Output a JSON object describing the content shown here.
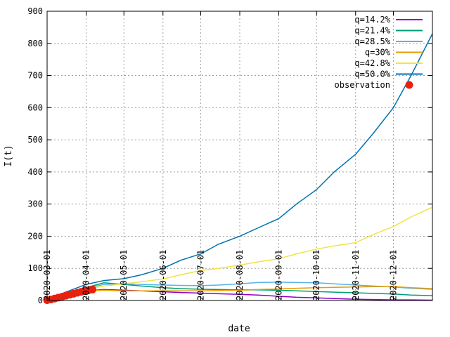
{
  "chart_data": {
    "type": "line",
    "xlabel": "date",
    "ylabel": "I(t)",
    "xlim": [
      "2020-03-01",
      "2021-01-01"
    ],
    "ylim": [
      0,
      900
    ],
    "yticks": [
      0,
      100,
      200,
      300,
      400,
      500,
      600,
      700,
      800,
      900
    ],
    "xticks": [
      "2020-03-01",
      "2020-04-01",
      "2020-05-01",
      "2020-06-01",
      "2020-07-01",
      "2020-08-01",
      "2020-09-01",
      "2020-10-01",
      "2020-11-01",
      "2020-12-01"
    ],
    "grid": true,
    "legend_position": "top-right",
    "series": [
      {
        "name": "q=14.2%",
        "color": "#8b00c8",
        "x": [
          "2020-03-01",
          "2020-03-15",
          "2020-04-01",
          "2020-04-15",
          "2020-05-01",
          "2020-05-15",
          "2020-06-01",
          "2020-06-15",
          "2020-07-01",
          "2020-07-15",
          "2020-08-01",
          "2020-08-15",
          "2020-09-01",
          "2020-09-15",
          "2020-10-01",
          "2020-10-15",
          "2020-11-01",
          "2020-11-15",
          "2020-12-01",
          "2020-12-15",
          "2021-01-01"
        ],
        "y": [
          2,
          15,
          30,
          34,
          32,
          30,
          27,
          25,
          23,
          21,
          19,
          17,
          13,
          10,
          8,
          6,
          4,
          3,
          2,
          2,
          1
        ]
      },
      {
        "name": "q=21.4%",
        "color": "#009e73",
        "x": [
          "2020-03-01",
          "2020-03-15",
          "2020-04-01",
          "2020-04-15",
          "2020-05-01",
          "2020-05-15",
          "2020-06-01",
          "2020-06-15",
          "2020-07-01",
          "2020-07-15",
          "2020-08-01",
          "2020-08-15",
          "2020-09-01",
          "2020-09-15",
          "2020-10-01",
          "2020-10-15",
          "2020-11-01",
          "2020-11-15",
          "2020-12-01",
          "2020-12-15",
          "2021-01-01"
        ],
        "y": [
          2,
          20,
          40,
          55,
          50,
          45,
          40,
          37,
          35,
          34,
          33,
          33,
          32,
          30,
          28,
          26,
          24,
          22,
          20,
          17,
          15
        ]
      },
      {
        "name": "q=28.5%",
        "color": "#56b4e9",
        "x": [
          "2020-03-01",
          "2020-03-15",
          "2020-04-01",
          "2020-04-15",
          "2020-05-01",
          "2020-05-15",
          "2020-06-01",
          "2020-06-15",
          "2020-07-01",
          "2020-07-15",
          "2020-08-01",
          "2020-08-15",
          "2020-09-01",
          "2020-09-15",
          "2020-10-01",
          "2020-10-15",
          "2020-11-01",
          "2020-11-15",
          "2020-12-01",
          "2020-12-15",
          "2021-01-01"
        ],
        "y": [
          2,
          20,
          38,
          50,
          52,
          50,
          48,
          47,
          46,
          48,
          52,
          56,
          57,
          56,
          55,
          52,
          48,
          45,
          42,
          38,
          35
        ]
      },
      {
        "name": "q=30%",
        "color": "#e69f00",
        "x": [
          "2020-03-01",
          "2020-03-15",
          "2020-04-01",
          "2020-04-15",
          "2020-05-01",
          "2020-05-15",
          "2020-06-01",
          "2020-06-15",
          "2020-07-01",
          "2020-07-15",
          "2020-08-01",
          "2020-08-15",
          "2020-09-01",
          "2020-09-15",
          "2020-10-01",
          "2020-10-15",
          "2020-11-01",
          "2020-11-15",
          "2020-12-01",
          "2020-12-15",
          "2021-01-01"
        ],
        "y": [
          2,
          18,
          30,
          32,
          30,
          30,
          30,
          30,
          30,
          31,
          32,
          34,
          36,
          38,
          40,
          41,
          42,
          43,
          43,
          40,
          37
        ]
      },
      {
        "name": "q=42.8%",
        "color": "#f0e442",
        "x": [
          "2020-03-01",
          "2020-03-15",
          "2020-04-01",
          "2020-04-15",
          "2020-05-01",
          "2020-05-15",
          "2020-06-01",
          "2020-06-15",
          "2020-07-01",
          "2020-07-15",
          "2020-08-01",
          "2020-08-15",
          "2020-09-01",
          "2020-09-15",
          "2020-10-01",
          "2020-10-15",
          "2020-11-01",
          "2020-11-15",
          "2020-12-01",
          "2020-12-15",
          "2021-01-01"
        ],
        "y": [
          2,
          18,
          35,
          45,
          52,
          58,
          67,
          80,
          93,
          100,
          110,
          120,
          130,
          145,
          160,
          170,
          180,
          205,
          230,
          260,
          290
        ]
      },
      {
        "name": "q=50.0%",
        "color": "#0072b2",
        "x": [
          "2020-03-01",
          "2020-03-15",
          "2020-04-01",
          "2020-04-15",
          "2020-05-01",
          "2020-05-15",
          "2020-06-01",
          "2020-06-15",
          "2020-07-01",
          "2020-07-15",
          "2020-08-01",
          "2020-08-15",
          "2020-09-01",
          "2020-09-15",
          "2020-10-01",
          "2020-10-15",
          "2020-11-01",
          "2020-11-15",
          "2020-12-01",
          "2020-12-15",
          "2021-01-01"
        ],
        "y": [
          2,
          25,
          50,
          62,
          68,
          80,
          100,
          125,
          145,
          175,
          200,
          225,
          255,
          300,
          345,
          400,
          455,
          520,
          600,
          700,
          830
        ]
      }
    ],
    "observation": {
      "name": "observation",
      "color": "#e8200e",
      "x": [
        "2020-03-01",
        "2020-03-04",
        "2020-03-07",
        "2020-03-10",
        "2020-03-13",
        "2020-03-16",
        "2020-03-19",
        "2020-03-22",
        "2020-03-25",
        "2020-03-28",
        "2020-03-31",
        "2020-04-03",
        "2020-04-06"
      ],
      "y": [
        1,
        3,
        6,
        9,
        12,
        15,
        18,
        21,
        24,
        27,
        30,
        32,
        34
      ]
    }
  }
}
